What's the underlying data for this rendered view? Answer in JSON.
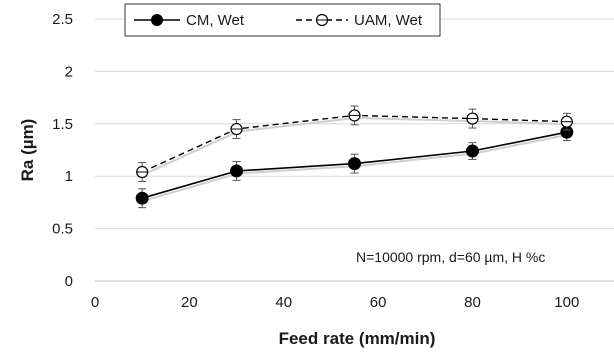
{
  "chart_data": {
    "type": "line",
    "xlabel": "Feed rate (mm/min)",
    "ylabel": "Ra (µm)",
    "xlim": [
      0,
      110
    ],
    "ylim": [
      0,
      2.5
    ],
    "xticks": [
      0,
      20,
      40,
      60,
      80,
      100
    ],
    "yticks": [
      0,
      0.5,
      1,
      1.5,
      2,
      2.5
    ],
    "xtick_labels": [
      "0",
      "20",
      "40",
      "60",
      "80",
      "100"
    ],
    "ytick_labels": [
      "0",
      "0.5",
      "1",
      "1.5",
      "2",
      "2.5"
    ],
    "grid": "horizontal",
    "legend_position": "top-center",
    "annotation": "N=10000 rpm, d=60 µm, H %c",
    "series": [
      {
        "name": "CM, Wet",
        "marker": "filled-circle",
        "line": "solid",
        "color": "#000000",
        "x": [
          10,
          30,
          55,
          80,
          100
        ],
        "y": [
          0.79,
          1.05,
          1.12,
          1.24,
          1.42
        ],
        "err": [
          0.09,
          0.09,
          0.09,
          0.08,
          0.08
        ]
      },
      {
        "name": "UAM, Wet",
        "marker": "open-circle",
        "line": "dashed",
        "color": "#000000",
        "x": [
          10,
          30,
          55,
          80,
          100
        ],
        "y": [
          1.04,
          1.45,
          1.58,
          1.55,
          1.52
        ],
        "err": [
          0.09,
          0.09,
          0.09,
          0.09,
          0.08
        ]
      }
    ]
  }
}
